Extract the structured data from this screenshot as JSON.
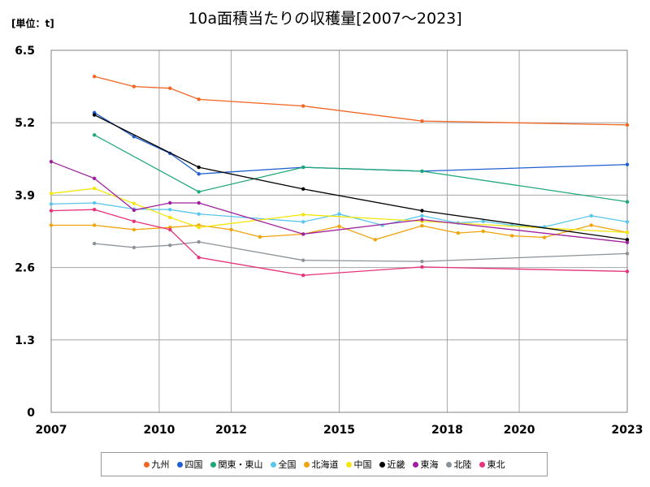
{
  "chart_data": {
    "type": "line",
    "title": "10a面積当たりの収穫量[2007～2023]",
    "unit_label": "[単位：t]",
    "xlim": [
      2007,
      2023
    ],
    "ylim": [
      0,
      6.5
    ],
    "x_ticks": [
      2007,
      2010,
      2012,
      2015,
      2018,
      2020,
      2023
    ],
    "y_ticks": [
      0,
      1.3,
      2.6,
      3.9,
      5.2,
      6.5
    ],
    "y_tick_labels": [
      "0",
      "1.3",
      "2.6",
      "3.9",
      "5.2",
      "6.5"
    ],
    "grid": true,
    "legend_position": "bottom",
    "series": [
      {
        "name": "九州",
        "color": "#f26522",
        "points": [
          [
            2008.2,
            6.03
          ],
          [
            2009.3,
            5.85
          ],
          [
            2010.3,
            5.82
          ],
          [
            2011.1,
            5.62
          ],
          [
            2014.0,
            5.5
          ],
          [
            2017.3,
            5.23
          ],
          [
            2023.0,
            5.16
          ]
        ]
      },
      {
        "name": "四国",
        "color": "#1f5fd0",
        "points": [
          [
            2008.2,
            5.38
          ],
          [
            2009.3,
            4.95
          ],
          [
            2010.3,
            4.65
          ],
          [
            2011.1,
            4.28
          ],
          [
            2014.0,
            4.4
          ],
          [
            2017.3,
            4.33
          ],
          [
            2023.0,
            4.45
          ]
        ]
      },
      {
        "name": "関東・東山",
        "color": "#1ea77a",
        "points": [
          [
            2008.2,
            4.98
          ],
          [
            2011.1,
            3.96
          ],
          [
            2014.0,
            4.4
          ],
          [
            2017.3,
            4.33
          ],
          [
            2023.0,
            3.78
          ]
        ]
      },
      {
        "name": "全国",
        "color": "#5bc6ec",
        "points": [
          [
            2007.0,
            3.74
          ],
          [
            2008.2,
            3.76
          ],
          [
            2009.3,
            3.65
          ],
          [
            2010.3,
            3.64
          ],
          [
            2011.1,
            3.56
          ],
          [
            2014.0,
            3.42
          ],
          [
            2015.0,
            3.56
          ],
          [
            2016.2,
            3.36
          ],
          [
            2017.3,
            3.53
          ],
          [
            2018.3,
            3.4
          ],
          [
            2019.0,
            3.43
          ],
          [
            2019.8,
            3.36
          ],
          [
            2020.7,
            3.33
          ],
          [
            2022.0,
            3.53
          ],
          [
            2023.0,
            3.42
          ]
        ]
      },
      {
        "name": "北海道",
        "color": "#f0a30a",
        "points": [
          [
            2007.0,
            3.36
          ],
          [
            2008.2,
            3.36
          ],
          [
            2009.3,
            3.28
          ],
          [
            2010.3,
            3.32
          ],
          [
            2011.1,
            3.36
          ],
          [
            2012.0,
            3.28
          ],
          [
            2012.8,
            3.15
          ],
          [
            2014.0,
            3.2
          ],
          [
            2015.0,
            3.34
          ],
          [
            2016.0,
            3.1
          ],
          [
            2017.3,
            3.35
          ],
          [
            2018.3,
            3.22
          ],
          [
            2019.0,
            3.25
          ],
          [
            2019.8,
            3.17
          ],
          [
            2020.7,
            3.14
          ],
          [
            2022.0,
            3.36
          ],
          [
            2023.0,
            3.23
          ]
        ]
      },
      {
        "name": "中国",
        "color": "#f5e50a",
        "points": [
          [
            2007.0,
            3.93
          ],
          [
            2008.2,
            4.02
          ],
          [
            2009.3,
            3.75
          ],
          [
            2010.3,
            3.5
          ],
          [
            2011.1,
            3.32
          ],
          [
            2014.0,
            3.55
          ],
          [
            2017.3,
            3.43
          ],
          [
            2023.0,
            3.23
          ]
        ]
      },
      {
        "name": "近畿",
        "color": "#000000",
        "points": [
          [
            2008.2,
            5.34
          ],
          [
            2011.1,
            4.4
          ],
          [
            2014.0,
            4.01
          ],
          [
            2017.3,
            3.62
          ],
          [
            2023.0,
            3.1
          ]
        ]
      },
      {
        "name": "東海",
        "color": "#a0209f",
        "points": [
          [
            2007.0,
            4.5
          ],
          [
            2008.2,
            4.2
          ],
          [
            2009.3,
            3.63
          ],
          [
            2010.3,
            3.76
          ],
          [
            2011.1,
            3.76
          ],
          [
            2014.0,
            3.2
          ],
          [
            2017.3,
            3.46
          ],
          [
            2023.0,
            3.05
          ]
        ]
      },
      {
        "name": "北陸",
        "color": "#8c9297",
        "points": [
          [
            2008.2,
            3.03
          ],
          [
            2009.3,
            2.96
          ],
          [
            2010.3,
            3.0
          ],
          [
            2011.1,
            3.06
          ],
          [
            2014.0,
            2.73
          ],
          [
            2017.3,
            2.71
          ],
          [
            2023.0,
            2.85
          ]
        ]
      },
      {
        "name": "東北",
        "color": "#e6337c",
        "points": [
          [
            2007.0,
            3.62
          ],
          [
            2008.2,
            3.64
          ],
          [
            2009.3,
            3.43
          ],
          [
            2010.3,
            3.28
          ],
          [
            2011.1,
            2.78
          ],
          [
            2014.0,
            2.46
          ],
          [
            2017.3,
            2.61
          ],
          [
            2023.0,
            2.53
          ]
        ]
      }
    ]
  }
}
